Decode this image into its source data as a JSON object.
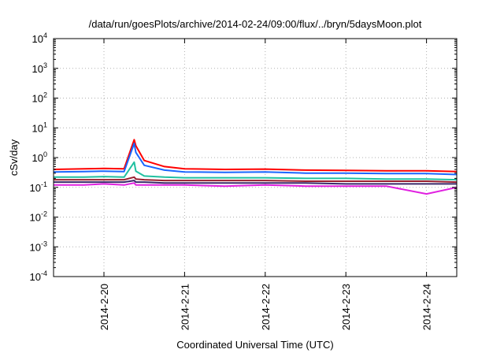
{
  "chart_data": {
    "type": "line",
    "title": "/data/run/goesPlots/archive/2014-02-24/09:00/flux/../bryn/5daysMoon.plot",
    "xlabel": "Coordinated Universal Time (UTC)",
    "ylabel": "cSv/day",
    "yscale": "log",
    "ylim": [
      0.0001,
      10000
    ],
    "xlim": [
      "2014-02-19 09:00",
      "2014-02-24 09:00"
    ],
    "x_ticks": [
      "2014-2-20",
      "2014-2-21",
      "2014-2-22",
      "2014-2-23",
      "2014-2-24"
    ],
    "y_ticks": [
      {
        "base": "10",
        "exp": "-4"
      },
      {
        "base": "10",
        "exp": "-3"
      },
      {
        "base": "10",
        "exp": "-2"
      },
      {
        "base": "10",
        "exp": "-1"
      },
      {
        "base": "10",
        "exp": "0"
      },
      {
        "base": "10",
        "exp": "1"
      },
      {
        "base": "10",
        "exp": "2"
      },
      {
        "base": "10",
        "exp": "3"
      },
      {
        "base": "10",
        "exp": "4"
      }
    ],
    "grid": true,
    "legend": "none",
    "series": [
      {
        "color": "#ff0000",
        "x": [
          "2014-02-19 09:00",
          "2014-02-19 18:00",
          "2014-02-20 00:00",
          "2014-02-20 06:00",
          "2014-02-20 09:00",
          "2014-02-20 09:30",
          "2014-02-20 12:00",
          "2014-02-20 18:00",
          "2014-02-21 00:00",
          "2014-02-21 12:00",
          "2014-02-22 00:00",
          "2014-02-22 12:00",
          "2014-02-23 00:00",
          "2014-02-23 12:00",
          "2014-02-24 00:00",
          "2014-02-24 09:00"
        ],
        "values": [
          0.4,
          0.42,
          0.43,
          0.42,
          4.0,
          2.5,
          0.8,
          0.5,
          0.42,
          0.4,
          0.41,
          0.38,
          0.37,
          0.36,
          0.36,
          0.34
        ]
      },
      {
        "color": "#1a66ff",
        "x": [
          "2014-02-19 09:00",
          "2014-02-19 18:00",
          "2014-02-20 00:00",
          "2014-02-20 06:00",
          "2014-02-20 09:00",
          "2014-02-20 09:30",
          "2014-02-20 12:00",
          "2014-02-20 18:00",
          "2014-02-21 00:00",
          "2014-02-21 12:00",
          "2014-02-22 00:00",
          "2014-02-22 12:00",
          "2014-02-23 00:00",
          "2014-02-23 12:00",
          "2014-02-24 00:00",
          "2014-02-24 09:00"
        ],
        "values": [
          0.33,
          0.34,
          0.35,
          0.34,
          3.0,
          1.5,
          0.55,
          0.38,
          0.33,
          0.32,
          0.33,
          0.3,
          0.3,
          0.29,
          0.29,
          0.27
        ]
      },
      {
        "color": "#20c0a0",
        "x": [
          "2014-02-19 09:00",
          "2014-02-19 18:00",
          "2014-02-20 00:00",
          "2014-02-20 06:00",
          "2014-02-20 09:00",
          "2014-02-20 09:30",
          "2014-02-20 12:00",
          "2014-02-20 18:00",
          "2014-02-21 00:00",
          "2014-02-21 12:00",
          "2014-02-22 00:00",
          "2014-02-22 12:00",
          "2014-02-23 00:00",
          "2014-02-23 12:00",
          "2014-02-24 00:00",
          "2014-02-24 09:00"
        ],
        "values": [
          0.22,
          0.22,
          0.23,
          0.22,
          0.7,
          0.35,
          0.24,
          0.22,
          0.21,
          0.21,
          0.21,
          0.2,
          0.2,
          0.19,
          0.19,
          0.18
        ]
      },
      {
        "color": "#9a2030",
        "x": [
          "2014-02-19 09:00",
          "2014-02-19 18:00",
          "2014-02-20 00:00",
          "2014-02-20 06:00",
          "2014-02-20 09:00",
          "2014-02-20 09:30",
          "2014-02-20 12:00",
          "2014-02-20 18:00",
          "2014-02-21 00:00",
          "2014-02-21 12:00",
          "2014-02-22 00:00",
          "2014-02-22 12:00",
          "2014-02-23 00:00",
          "2014-02-23 12:00",
          "2014-02-24 00:00",
          "2014-02-24 09:00"
        ],
        "values": [
          0.18,
          0.18,
          0.18,
          0.18,
          0.22,
          0.19,
          0.18,
          0.17,
          0.17,
          0.17,
          0.17,
          0.16,
          0.16,
          0.16,
          0.16,
          0.15
        ]
      },
      {
        "color": "#3a2a6a",
        "x": [
          "2014-02-19 09:00",
          "2014-02-19 18:00",
          "2014-02-20 00:00",
          "2014-02-20 06:00",
          "2014-02-20 09:00",
          "2014-02-20 09:30",
          "2014-02-20 12:00",
          "2014-02-20 18:00",
          "2014-02-21 00:00",
          "2014-02-21 12:00",
          "2014-02-22 00:00",
          "2014-02-22 12:00",
          "2014-02-23 00:00",
          "2014-02-23 12:00",
          "2014-02-24 00:00",
          "2014-02-24 09:00"
        ],
        "values": [
          0.15,
          0.15,
          0.15,
          0.15,
          0.17,
          0.15,
          0.15,
          0.14,
          0.14,
          0.14,
          0.14,
          0.14,
          0.13,
          0.13,
          0.13,
          0.13
        ]
      },
      {
        "color": "#e020e0",
        "x": [
          "2014-02-19 09:00",
          "2014-02-19 18:00",
          "2014-02-20 00:00",
          "2014-02-20 06:00",
          "2014-02-20 09:00",
          "2014-02-20 09:30",
          "2014-02-20 12:00",
          "2014-02-20 18:00",
          "2014-02-21 00:00",
          "2014-02-21 12:00",
          "2014-02-22 00:00",
          "2014-02-22 12:00",
          "2014-02-23 00:00",
          "2014-02-23 12:00",
          "2014-02-24 00:00",
          "2014-02-24 09:00"
        ],
        "values": [
          0.12,
          0.12,
          0.13,
          0.12,
          0.14,
          0.12,
          0.12,
          0.12,
          0.12,
          0.11,
          0.12,
          0.11,
          0.11,
          0.11,
          0.06,
          0.1
        ]
      }
    ]
  }
}
